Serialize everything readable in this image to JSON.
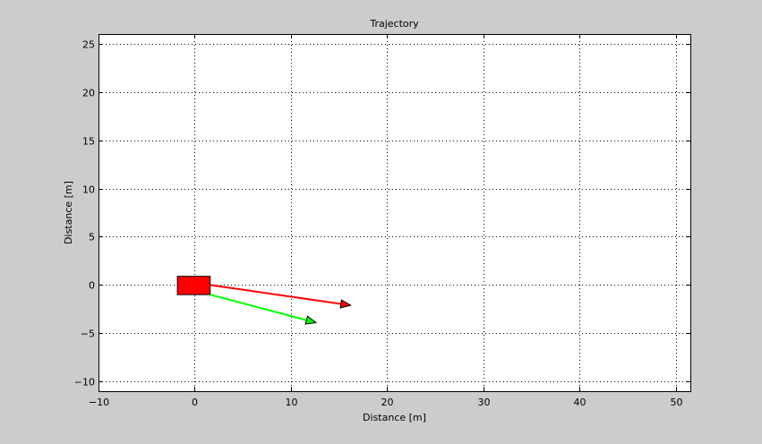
{
  "chart_data": {
    "type": "line",
    "title": "Trajectory",
    "xlabel": "Distance [m]",
    "ylabel": "Distance [m]",
    "xlim": [
      -10,
      51.5
    ],
    "ylim": [
      -11,
      26
    ],
    "xticks": [
      -10,
      0,
      10,
      20,
      30,
      40,
      50
    ],
    "yticks": [
      -10,
      -5,
      0,
      5,
      10,
      15,
      20,
      25
    ],
    "xtick_labels": [
      "−10",
      "0",
      "10",
      "20",
      "30",
      "40",
      "50"
    ],
    "ytick_labels": [
      "−10",
      "−5",
      "0",
      "5",
      "10",
      "15",
      "20",
      "25"
    ],
    "grid": true,
    "grid_style": "dotted",
    "vehicle": {
      "x_min": -1.8,
      "x_max": 1.6,
      "y_min": -1.0,
      "y_max": 0.9,
      "color": "#ff0000"
    },
    "series": [
      {
        "x": [
          1.6,
          16.2
        ],
        "y": [
          0.0,
          -2.1
        ],
        "color": "#ff0000",
        "arrow": true
      },
      {
        "x": [
          1.6,
          12.6
        ],
        "y": [
          -1.0,
          -3.9
        ],
        "color": "#00ff00",
        "arrow": true
      }
    ],
    "colors": {
      "figure_bg": "#cccccc",
      "axes_bg": "#ffffff"
    }
  }
}
